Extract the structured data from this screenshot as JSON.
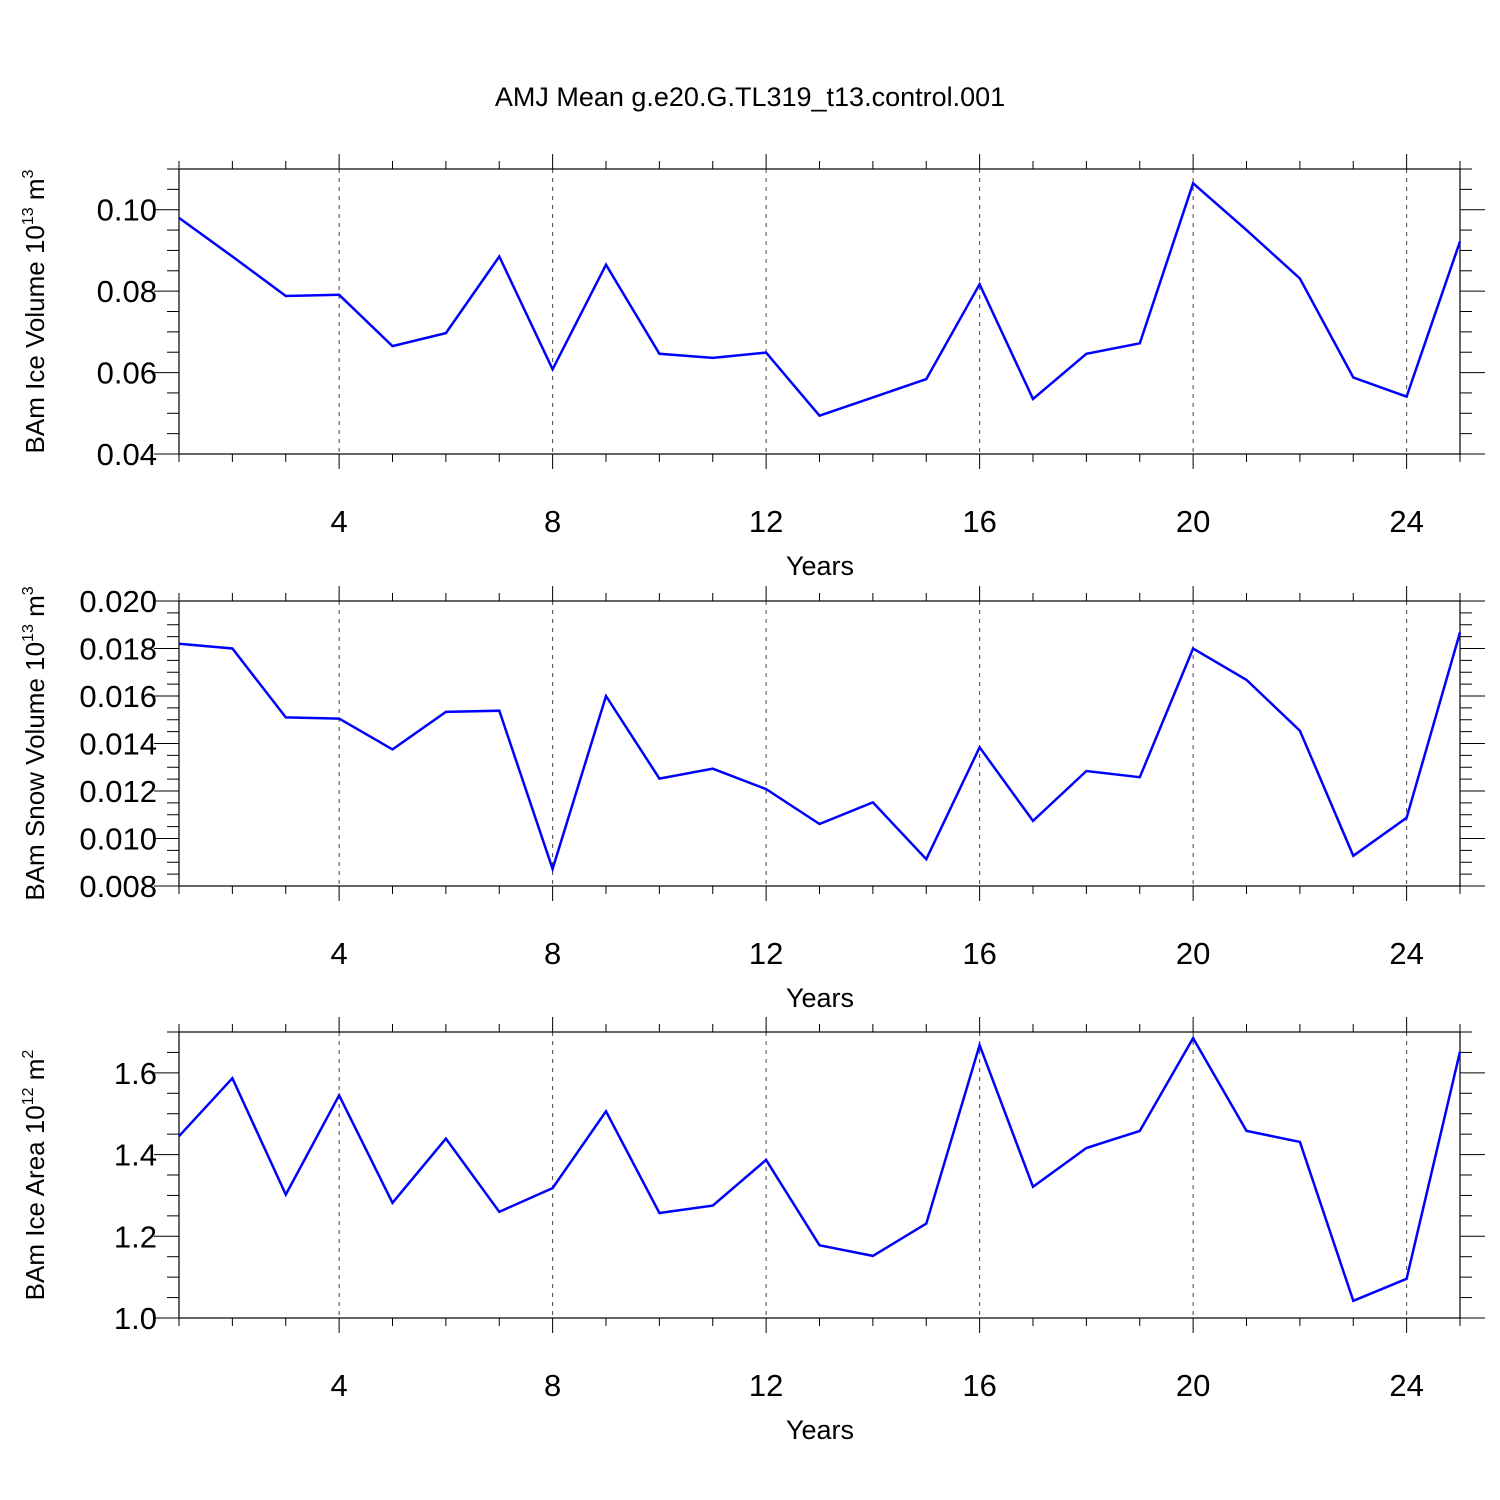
{
  "title": "AMJ Mean g.e20.G.TL319_t13.control.001",
  "line_color": "#0000ff",
  "chart_data": [
    {
      "type": "line",
      "xlabel": "Years",
      "ylabel": "BAm Ice Volume 10",
      "ylabel_exp": "13",
      "ylabel_unit": " m",
      "ylabel_unit_exp": "3",
      "xlim": [
        1,
        25
      ],
      "ylim": [
        0.04,
        0.11
      ],
      "xticks": [
        4,
        8,
        12,
        16,
        20,
        24
      ],
      "yticks": [
        0.04,
        0.06,
        0.08,
        0.1
      ],
      "ytick_labels": [
        "0.04",
        "0.06",
        "0.08",
        "0.10"
      ],
      "grid": "dashed vertical at major x ticks",
      "series": [
        {
          "x": [
            1,
            2,
            3,
            4,
            5,
            6,
            7,
            8,
            9,
            10,
            11,
            12,
            13,
            14,
            15,
            16,
            17,
            18,
            19,
            20,
            21,
            22,
            23,
            24,
            25
          ],
          "values": [
            0.098,
            0.0885,
            0.0788,
            0.0791,
            0.0665,
            0.0697,
            0.0885,
            0.0608,
            0.0865,
            0.0646,
            0.0636,
            0.0649,
            0.0494,
            0.0539,
            0.0584,
            0.0817,
            0.0535,
            0.0646,
            0.0672,
            0.1065,
            0.095,
            0.0831,
            0.0588,
            0.0541,
            0.0922
          ]
        }
      ]
    },
    {
      "type": "line",
      "xlabel": "Years",
      "ylabel": "BAm Snow Volume 10",
      "ylabel_exp": "13",
      "ylabel_unit": " m",
      "ylabel_unit_exp": "3",
      "xlim": [
        1,
        25
      ],
      "ylim": [
        0.008,
        0.02
      ],
      "xticks": [
        4,
        8,
        12,
        16,
        20,
        24
      ],
      "yticks": [
        0.008,
        0.01,
        0.012,
        0.014,
        0.016,
        0.018,
        0.02
      ],
      "ytick_labels": [
        "0.008",
        "0.010",
        "0.012",
        "0.014",
        "0.016",
        "0.018",
        "0.020"
      ],
      "grid": "dashed vertical at major x ticks",
      "series": [
        {
          "x": [
            1,
            2,
            3,
            4,
            5,
            6,
            7,
            8,
            9,
            10,
            11,
            12,
            13,
            14,
            15,
            16,
            17,
            18,
            19,
            20,
            21,
            22,
            23,
            24,
            25
          ],
          "values": [
            0.0182,
            0.018,
            0.0151,
            0.01505,
            0.01375,
            0.01533,
            0.01538,
            0.00872,
            0.016,
            0.01252,
            0.01294,
            0.01208,
            0.01061,
            0.01152,
            0.00913,
            0.01384,
            0.01074,
            0.01284,
            0.01258,
            0.018,
            0.01668,
            0.01454,
            0.00927,
            0.01087,
            0.01868
          ]
        }
      ]
    },
    {
      "type": "line",
      "xlabel": "Years",
      "ylabel": "BAm Ice Area 10",
      "ylabel_exp": "12",
      "ylabel_unit": " m",
      "ylabel_unit_exp": "2",
      "xlim": [
        1,
        25
      ],
      "ylim": [
        1.0,
        1.7
      ],
      "xticks": [
        4,
        8,
        12,
        16,
        20,
        24
      ],
      "yticks": [
        1.0,
        1.2,
        1.4,
        1.6
      ],
      "ytick_labels": [
        "1.0",
        "1.2",
        "1.4",
        "1.6"
      ],
      "grid": "dashed vertical at major x ticks",
      "series": [
        {
          "x": [
            1,
            2,
            3,
            4,
            5,
            6,
            7,
            8,
            9,
            10,
            11,
            12,
            13,
            14,
            15,
            16,
            17,
            18,
            19,
            20,
            21,
            22,
            23,
            24,
            25
          ],
          "values": [
            1.445,
            1.587,
            1.302,
            1.545,
            1.282,
            1.439,
            1.26,
            1.318,
            1.506,
            1.257,
            1.275,
            1.387,
            1.178,
            1.152,
            1.231,
            1.668,
            1.321,
            1.416,
            1.458,
            1.685,
            1.458,
            1.431,
            1.042,
            1.096,
            1.652
          ]
        }
      ]
    }
  ]
}
